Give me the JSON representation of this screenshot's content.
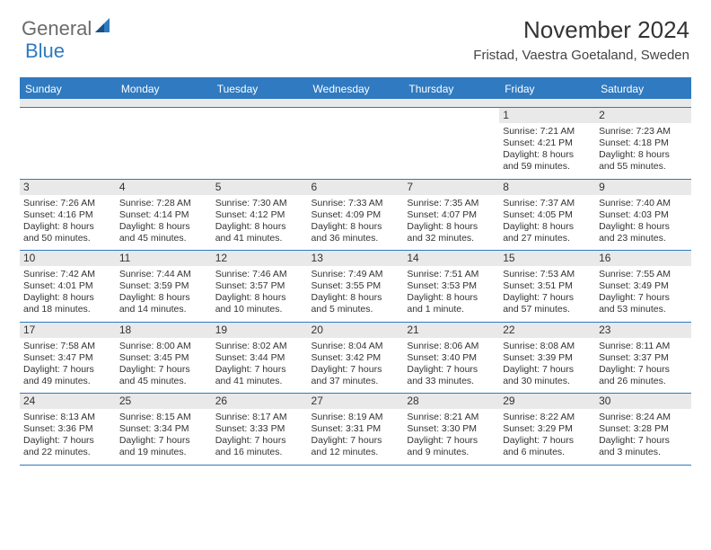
{
  "logo": {
    "general": "General",
    "blue": "Blue"
  },
  "title": "November 2024",
  "location": "Fristad, Vaestra Goetaland, Sweden",
  "colors": {
    "accent": "#2f7ac0",
    "header_text": "#333333",
    "daybar_bg": "#e9e9e9"
  },
  "daysOfWeek": [
    "Sunday",
    "Monday",
    "Tuesday",
    "Wednesday",
    "Thursday",
    "Friday",
    "Saturday"
  ],
  "weeks": [
    [
      null,
      null,
      null,
      null,
      null,
      {
        "n": "1",
        "sr": "Sunrise: 7:21 AM",
        "ss": "Sunset: 4:21 PM",
        "d1": "Daylight: 8 hours",
        "d2": "and 59 minutes."
      },
      {
        "n": "2",
        "sr": "Sunrise: 7:23 AM",
        "ss": "Sunset: 4:18 PM",
        "d1": "Daylight: 8 hours",
        "d2": "and 55 minutes."
      }
    ],
    [
      {
        "n": "3",
        "sr": "Sunrise: 7:26 AM",
        "ss": "Sunset: 4:16 PM",
        "d1": "Daylight: 8 hours",
        "d2": "and 50 minutes."
      },
      {
        "n": "4",
        "sr": "Sunrise: 7:28 AM",
        "ss": "Sunset: 4:14 PM",
        "d1": "Daylight: 8 hours",
        "d2": "and 45 minutes."
      },
      {
        "n": "5",
        "sr": "Sunrise: 7:30 AM",
        "ss": "Sunset: 4:12 PM",
        "d1": "Daylight: 8 hours",
        "d2": "and 41 minutes."
      },
      {
        "n": "6",
        "sr": "Sunrise: 7:33 AM",
        "ss": "Sunset: 4:09 PM",
        "d1": "Daylight: 8 hours",
        "d2": "and 36 minutes."
      },
      {
        "n": "7",
        "sr": "Sunrise: 7:35 AM",
        "ss": "Sunset: 4:07 PM",
        "d1": "Daylight: 8 hours",
        "d2": "and 32 minutes."
      },
      {
        "n": "8",
        "sr": "Sunrise: 7:37 AM",
        "ss": "Sunset: 4:05 PM",
        "d1": "Daylight: 8 hours",
        "d2": "and 27 minutes."
      },
      {
        "n": "9",
        "sr": "Sunrise: 7:40 AM",
        "ss": "Sunset: 4:03 PM",
        "d1": "Daylight: 8 hours",
        "d2": "and 23 minutes."
      }
    ],
    [
      {
        "n": "10",
        "sr": "Sunrise: 7:42 AM",
        "ss": "Sunset: 4:01 PM",
        "d1": "Daylight: 8 hours",
        "d2": "and 18 minutes."
      },
      {
        "n": "11",
        "sr": "Sunrise: 7:44 AM",
        "ss": "Sunset: 3:59 PM",
        "d1": "Daylight: 8 hours",
        "d2": "and 14 minutes."
      },
      {
        "n": "12",
        "sr": "Sunrise: 7:46 AM",
        "ss": "Sunset: 3:57 PM",
        "d1": "Daylight: 8 hours",
        "d2": "and 10 minutes."
      },
      {
        "n": "13",
        "sr": "Sunrise: 7:49 AM",
        "ss": "Sunset: 3:55 PM",
        "d1": "Daylight: 8 hours",
        "d2": "and 5 minutes."
      },
      {
        "n": "14",
        "sr": "Sunrise: 7:51 AM",
        "ss": "Sunset: 3:53 PM",
        "d1": "Daylight: 8 hours",
        "d2": "and 1 minute."
      },
      {
        "n": "15",
        "sr": "Sunrise: 7:53 AM",
        "ss": "Sunset: 3:51 PM",
        "d1": "Daylight: 7 hours",
        "d2": "and 57 minutes."
      },
      {
        "n": "16",
        "sr": "Sunrise: 7:55 AM",
        "ss": "Sunset: 3:49 PM",
        "d1": "Daylight: 7 hours",
        "d2": "and 53 minutes."
      }
    ],
    [
      {
        "n": "17",
        "sr": "Sunrise: 7:58 AM",
        "ss": "Sunset: 3:47 PM",
        "d1": "Daylight: 7 hours",
        "d2": "and 49 minutes."
      },
      {
        "n": "18",
        "sr": "Sunrise: 8:00 AM",
        "ss": "Sunset: 3:45 PM",
        "d1": "Daylight: 7 hours",
        "d2": "and 45 minutes."
      },
      {
        "n": "19",
        "sr": "Sunrise: 8:02 AM",
        "ss": "Sunset: 3:44 PM",
        "d1": "Daylight: 7 hours",
        "d2": "and 41 minutes."
      },
      {
        "n": "20",
        "sr": "Sunrise: 8:04 AM",
        "ss": "Sunset: 3:42 PM",
        "d1": "Daylight: 7 hours",
        "d2": "and 37 minutes."
      },
      {
        "n": "21",
        "sr": "Sunrise: 8:06 AM",
        "ss": "Sunset: 3:40 PM",
        "d1": "Daylight: 7 hours",
        "d2": "and 33 minutes."
      },
      {
        "n": "22",
        "sr": "Sunrise: 8:08 AM",
        "ss": "Sunset: 3:39 PM",
        "d1": "Daylight: 7 hours",
        "d2": "and 30 minutes."
      },
      {
        "n": "23",
        "sr": "Sunrise: 8:11 AM",
        "ss": "Sunset: 3:37 PM",
        "d1": "Daylight: 7 hours",
        "d2": "and 26 minutes."
      }
    ],
    [
      {
        "n": "24",
        "sr": "Sunrise: 8:13 AM",
        "ss": "Sunset: 3:36 PM",
        "d1": "Daylight: 7 hours",
        "d2": "and 22 minutes."
      },
      {
        "n": "25",
        "sr": "Sunrise: 8:15 AM",
        "ss": "Sunset: 3:34 PM",
        "d1": "Daylight: 7 hours",
        "d2": "and 19 minutes."
      },
      {
        "n": "26",
        "sr": "Sunrise: 8:17 AM",
        "ss": "Sunset: 3:33 PM",
        "d1": "Daylight: 7 hours",
        "d2": "and 16 minutes."
      },
      {
        "n": "27",
        "sr": "Sunrise: 8:19 AM",
        "ss": "Sunset: 3:31 PM",
        "d1": "Daylight: 7 hours",
        "d2": "and 12 minutes."
      },
      {
        "n": "28",
        "sr": "Sunrise: 8:21 AM",
        "ss": "Sunset: 3:30 PM",
        "d1": "Daylight: 7 hours",
        "d2": "and 9 minutes."
      },
      {
        "n": "29",
        "sr": "Sunrise: 8:22 AM",
        "ss": "Sunset: 3:29 PM",
        "d1": "Daylight: 7 hours",
        "d2": "and 6 minutes."
      },
      {
        "n": "30",
        "sr": "Sunrise: 8:24 AM",
        "ss": "Sunset: 3:28 PM",
        "d1": "Daylight: 7 hours",
        "d2": "and 3 minutes."
      }
    ]
  ]
}
